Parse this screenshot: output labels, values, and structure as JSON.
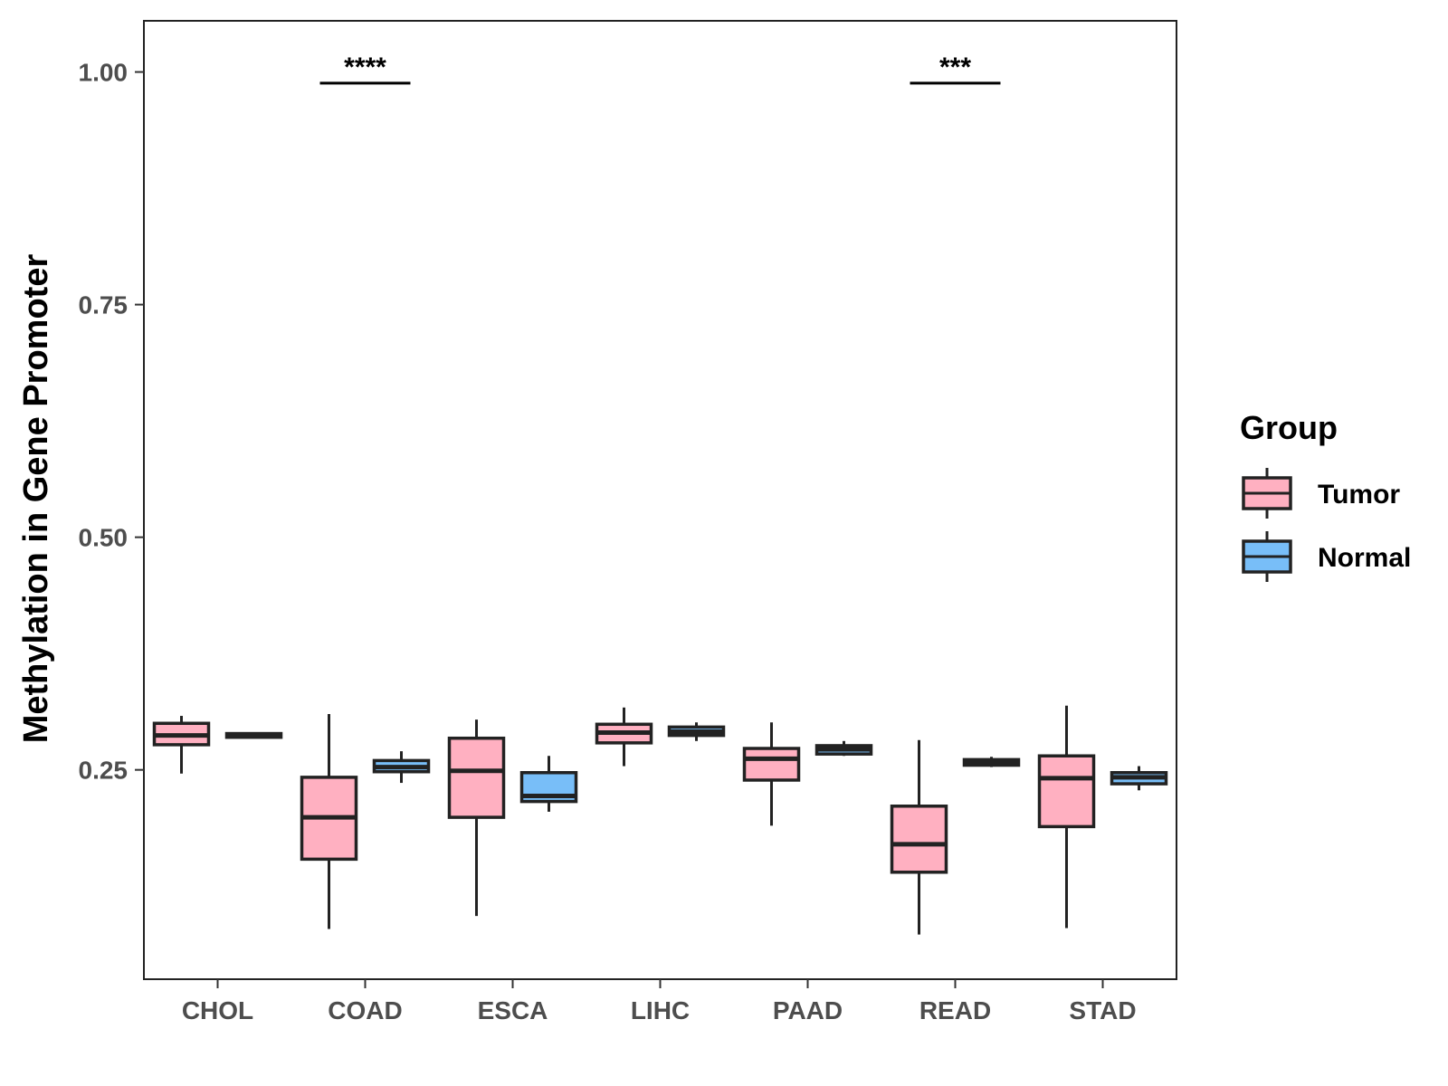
{
  "chart_data": {
    "type": "boxplot",
    "title": "",
    "xlabel": "",
    "ylabel": "Methylation in Gene Promoter",
    "ylim": [
      0.025,
      1.055
    ],
    "yticks": [
      0.25,
      0.5,
      0.75,
      1.0
    ],
    "ytick_labels": [
      "0.25",
      "0.50",
      "0.75",
      "1.00"
    ],
    "categories": [
      "CHOL",
      "COAD",
      "ESCA",
      "LIHC",
      "PAAD",
      "READ",
      "STAD"
    ],
    "legend": {
      "title": "Group",
      "position": "right",
      "entries": [
        {
          "name": "Tumor",
          "color": "#FFB0C1"
        },
        {
          "name": "Normal",
          "color": "#78BEF8"
        }
      ]
    },
    "series": [
      {
        "name": "Tumor",
        "color": "#FFB0C1",
        "boxes": [
          {
            "category": "CHOL",
            "whisker_low": 0.246,
            "q1": 0.277,
            "median": 0.287,
            "q3": 0.3,
            "whisker_high": 0.308
          },
          {
            "category": "COAD",
            "whisker_low": 0.079,
            "q1": 0.154,
            "median": 0.199,
            "q3": 0.242,
            "whisker_high": 0.31
          },
          {
            "category": "ESCA",
            "whisker_low": 0.093,
            "q1": 0.199,
            "median": 0.249,
            "q3": 0.284,
            "whisker_high": 0.304
          },
          {
            "category": "LIHC",
            "whisker_low": 0.254,
            "q1": 0.279,
            "median": 0.29,
            "q3": 0.299,
            "whisker_high": 0.317
          },
          {
            "category": "PAAD",
            "whisker_low": 0.19,
            "q1": 0.239,
            "median": 0.262,
            "q3": 0.273,
            "whisker_high": 0.301
          },
          {
            "category": "READ",
            "whisker_low": 0.073,
            "q1": 0.14,
            "median": 0.17,
            "q3": 0.211,
            "whisker_high": 0.282
          },
          {
            "category": "STAD",
            "whisker_low": 0.08,
            "q1": 0.189,
            "median": 0.241,
            "q3": 0.265,
            "whisker_high": 0.319
          }
        ]
      },
      {
        "name": "Normal",
        "color": "#78BEF8",
        "boxes": [
          {
            "category": "CHOL",
            "whisker_low": 0.285,
            "q1": 0.285,
            "median": 0.287,
            "q3": 0.289,
            "whisker_high": 0.289
          },
          {
            "category": "COAD",
            "whisker_low": 0.236,
            "q1": 0.248,
            "median": 0.253,
            "q3": 0.26,
            "whisker_high": 0.27
          },
          {
            "category": "ESCA",
            "whisker_low": 0.205,
            "q1": 0.216,
            "median": 0.222,
            "q3": 0.247,
            "whisker_high": 0.265
          },
          {
            "category": "LIHC",
            "whisker_low": 0.281,
            "q1": 0.287,
            "median": 0.291,
            "q3": 0.296,
            "whisker_high": 0.301
          },
          {
            "category": "PAAD",
            "whisker_low": 0.265,
            "q1": 0.267,
            "median": 0.272,
            "q3": 0.276,
            "whisker_high": 0.281
          },
          {
            "category": "READ",
            "whisker_low": 0.253,
            "q1": 0.255,
            "median": 0.258,
            "q3": 0.261,
            "whisker_high": 0.264
          },
          {
            "category": "STAD",
            "whisker_low": 0.228,
            "q1": 0.235,
            "median": 0.242,
            "q3": 0.247,
            "whisker_high": 0.254
          }
        ]
      }
    ],
    "significance": [
      {
        "category": "COAD",
        "label": "****",
        "y": 0.988
      },
      {
        "category": "READ",
        "label": "***",
        "y": 0.988
      }
    ],
    "grid": false
  }
}
